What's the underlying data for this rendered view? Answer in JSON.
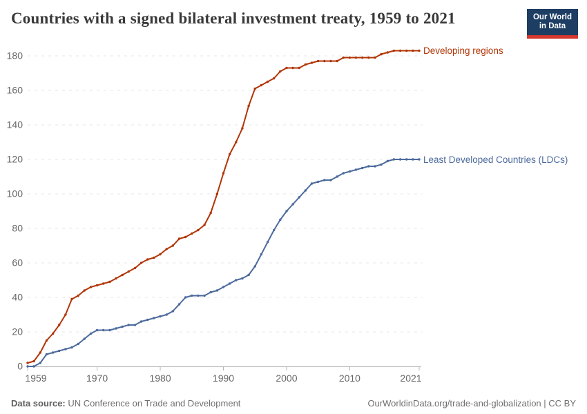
{
  "header": {
    "title": "Countries with a signed bilateral investment treaty, 1959 to 2021",
    "logo": {
      "line1": "Our World",
      "line2": "in Data"
    }
  },
  "footer": {
    "source_label": "Data source:",
    "source_value": "UN Conference on Trade and Development",
    "credit": "OurWorldinData.org/trade-and-globalization | CC BY"
  },
  "chart_data": {
    "type": "line",
    "title": "Countries with a signed bilateral investment treaty, 1959 to 2021",
    "xlabel": "",
    "ylabel": "",
    "xlim": [
      1959,
      2021
    ],
    "ylim": [
      0,
      180
    ],
    "grid": "horizontal-dashed",
    "legend_position": "labels-at-line-ends",
    "markers": true,
    "xticks": [
      1959,
      1970,
      1980,
      1990,
      2000,
      2010,
      2021
    ],
    "yticks": [
      0,
      20,
      40,
      60,
      80,
      100,
      120,
      140,
      160,
      180
    ],
    "x": [
      1959,
      1960,
      1961,
      1962,
      1963,
      1964,
      1965,
      1966,
      1967,
      1968,
      1969,
      1970,
      1971,
      1972,
      1973,
      1974,
      1975,
      1976,
      1977,
      1978,
      1979,
      1980,
      1981,
      1982,
      1983,
      1984,
      1985,
      1986,
      1987,
      1988,
      1989,
      1990,
      1991,
      1992,
      1993,
      1994,
      1995,
      1996,
      1997,
      1998,
      1999,
      2000,
      2001,
      2002,
      2003,
      2004,
      2005,
      2006,
      2007,
      2008,
      2009,
      2010,
      2011,
      2012,
      2013,
      2014,
      2015,
      2016,
      2017,
      2018,
      2019,
      2020,
      2021
    ],
    "series": [
      {
        "name": "Developing regions",
        "color": "#B13507",
        "values": [
          2,
          3,
          8,
          15,
          19,
          24,
          30,
          39,
          41,
          44,
          46,
          47,
          48,
          49,
          51,
          53,
          55,
          57,
          60,
          62,
          63,
          65,
          68,
          70,
          74,
          75,
          77,
          79,
          82,
          89,
          100,
          112,
          123,
          130,
          138,
          151,
          161,
          163,
          165,
          167,
          171,
          173,
          173,
          173,
          175,
          176,
          177,
          177,
          177,
          177,
          179,
          179,
          179,
          179,
          179,
          179,
          181,
          182,
          183,
          183,
          183,
          183,
          183
        ]
      },
      {
        "name": "Least Developed Countries (LDCs)",
        "color": "#4C6A9C",
        "values": [
          0,
          0,
          2,
          7,
          8,
          9,
          10,
          11,
          13,
          16,
          19,
          21,
          21,
          21,
          22,
          23,
          24,
          24,
          26,
          27,
          28,
          29,
          30,
          32,
          36,
          40,
          41,
          41,
          41,
          43,
          44,
          46,
          48,
          50,
          51,
          53,
          58,
          65,
          72,
          79,
          85,
          90,
          94,
          98,
          102,
          106,
          107,
          108,
          108,
          110,
          112,
          113,
          114,
          115,
          116,
          116,
          117,
          119,
          120,
          120,
          120,
          120,
          120
        ]
      }
    ]
  }
}
